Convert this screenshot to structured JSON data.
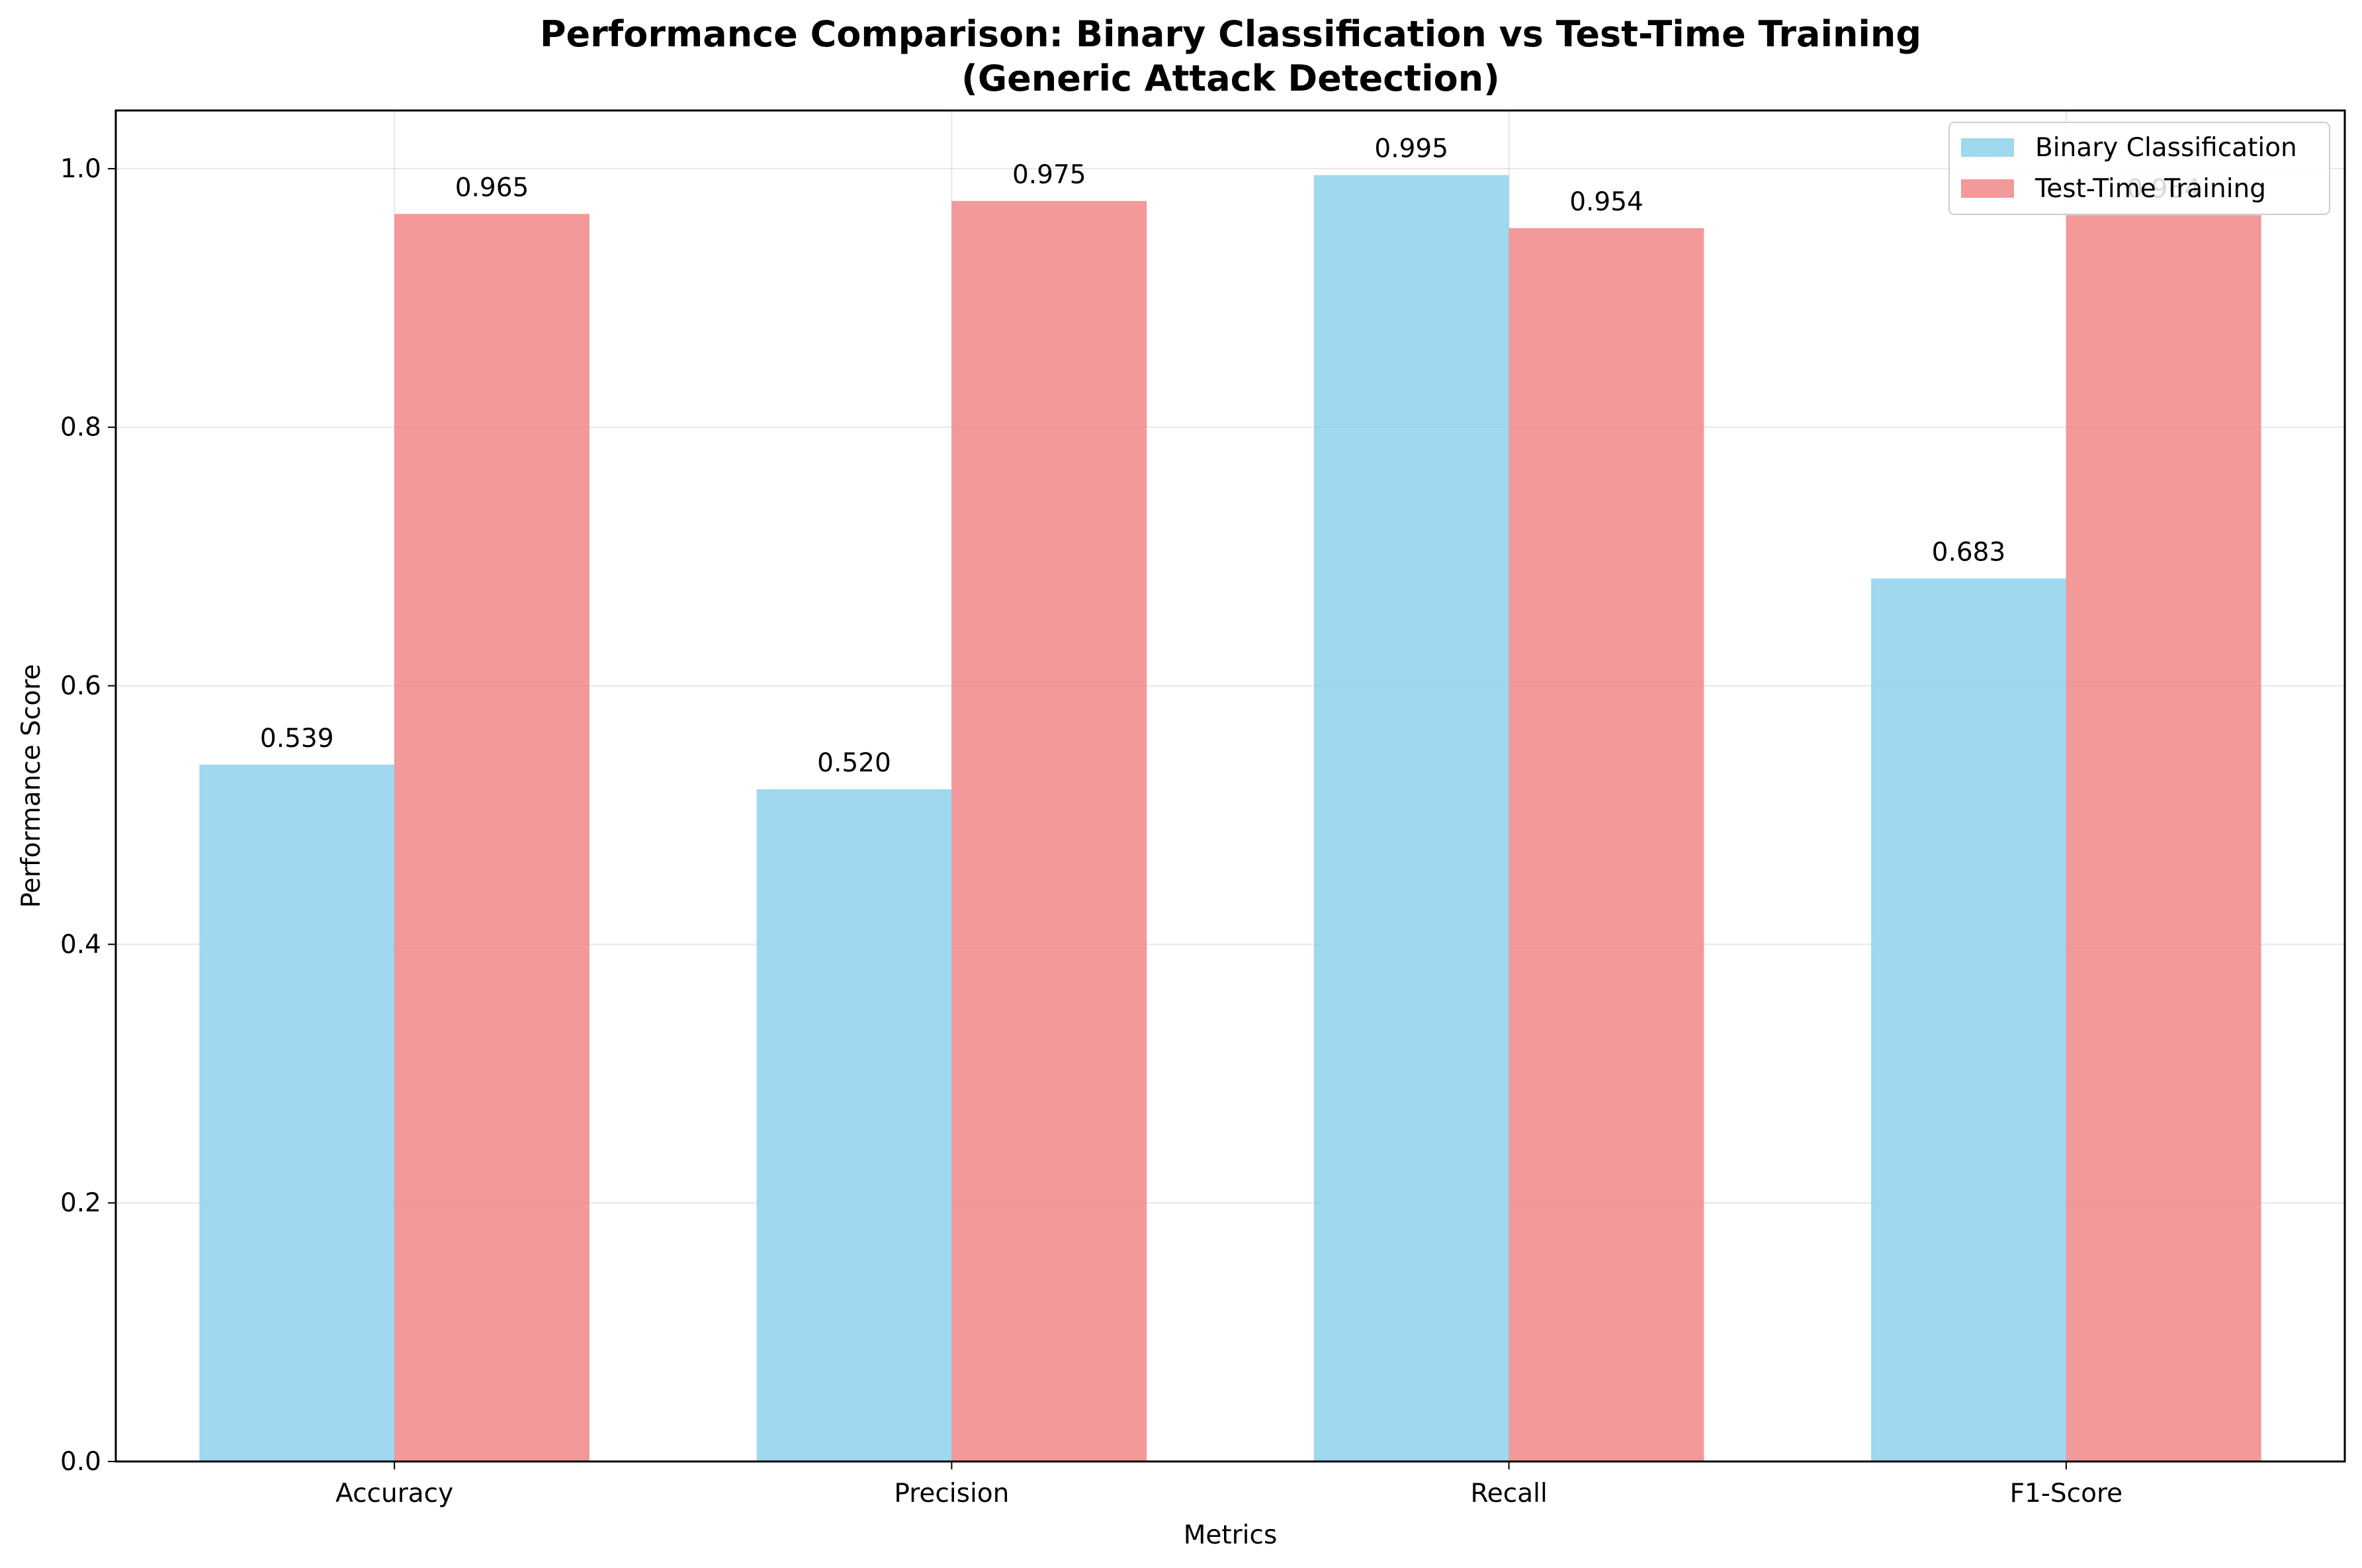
{
  "chart_data": {
    "type": "bar",
    "title": "Performance Comparison: Binary Classification vs Test-Time Training",
    "subtitle": "(Generic Attack Detection)",
    "xlabel": "Metrics",
    "ylabel": "Performance Score",
    "categories": [
      "Accuracy",
      "Precision",
      "Recall",
      "F1-Score"
    ],
    "series": [
      {
        "name": "Binary Classification",
        "color": "#87ceeb",
        "values": [
          0.539,
          0.52,
          0.995,
          0.683
        ],
        "value_labels": [
          "0.539",
          "0.520",
          "0.995",
          "0.683"
        ]
      },
      {
        "name": "Test-Time Training",
        "color": "#f08080",
        "values": [
          0.965,
          0.975,
          0.954,
          0.964
        ],
        "value_labels": [
          "0.965",
          "0.975",
          "0.954",
          "0.964"
        ]
      }
    ],
    "ylim": [
      0,
      1.045
    ],
    "yticks": [
      0.0,
      0.2,
      0.4,
      0.6,
      0.8,
      1.0
    ],
    "ytick_labels": [
      "0.0",
      "0.2",
      "0.4",
      "0.6",
      "0.8",
      "1.0"
    ],
    "grid": true,
    "legend_position": "top-right"
  }
}
